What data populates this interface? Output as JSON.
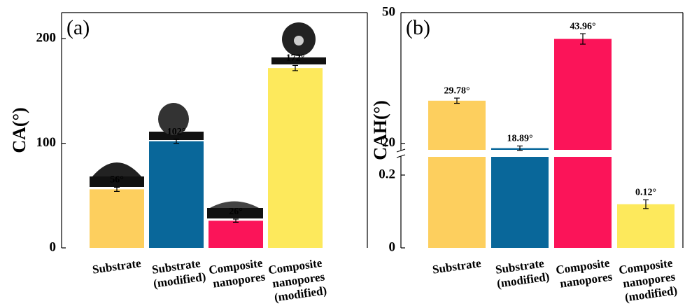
{
  "chart_data": [
    {
      "type": "bar",
      "title": "(a)",
      "y_label": "CA(°)",
      "categories": [
        "Substrate",
        "Substrate (modified)",
        "Composite nanopores",
        "Composite nanopores (modified)"
      ],
      "values": [
        56,
        102,
        26,
        172
      ],
      "value_labels": [
        "56°",
        "102°",
        "26°",
        "172°"
      ],
      "errors": [
        2,
        2,
        1.5,
        2.5
      ],
      "colors": [
        "#fdcf5e",
        "#09679a",
        "#fb1459",
        "#fde95c"
      ],
      "ylim": [
        0,
        225
      ],
      "yticks": [
        0,
        100,
        200
      ]
    },
    {
      "type": "bar",
      "title": "(b)",
      "y_label": "CAH(°)",
      "categories": [
        "Substrate",
        "Substrate (modified)",
        "Composite nanopores",
        "Composite nanopores (modified)"
      ],
      "values": [
        29.78,
        18.89,
        43.96,
        0.12
      ],
      "value_labels": [
        "29.78°",
        "18.89°",
        "43.96°",
        "0.12°"
      ],
      "errors": [
        0.6,
        0.5,
        1.2,
        0.012
      ],
      "colors": [
        "#fdcf5e",
        "#09679a",
        "#fb1459",
        "#fde95c"
      ],
      "ylim": [
        0,
        50
      ],
      "axis_break": [
        0.25,
        18.5
      ],
      "yticks": [
        0,
        0.2,
        20,
        50
      ]
    }
  ]
}
